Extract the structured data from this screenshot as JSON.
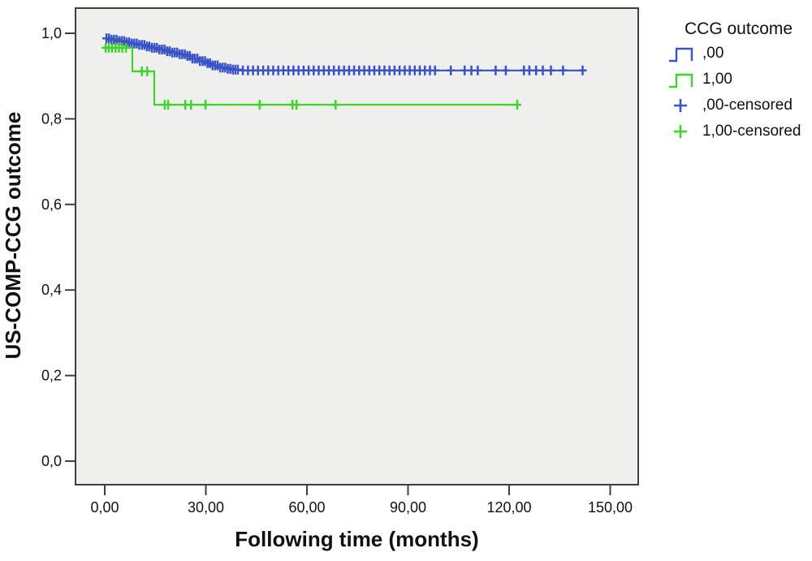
{
  "chart_data": {
    "type": "line",
    "subtype": "kaplan-meier-step-survival",
    "title": "",
    "xlabel": "Following time (months)",
    "ylabel": "US-COMP-CCG outcome",
    "grid": false,
    "plot_bg": "#eff0ee",
    "frame_color": "#3f3f3f",
    "text_color": "#111111",
    "x_axis": {
      "ticks": [
        0,
        30,
        60,
        90,
        120,
        150
      ],
      "tick_labels": [
        "0,00",
        "30,00",
        "60,00",
        "90,00",
        "120,00",
        "150,00"
      ],
      "range": [
        -8.7,
        158.3
      ]
    },
    "y_axis": {
      "ticks": [
        0.0,
        0.2,
        0.4,
        0.6,
        0.8,
        1.0
      ],
      "tick_labels": [
        "0,0",
        "0,2",
        "0,4",
        "0,6",
        "0,8",
        "1,0"
      ],
      "range": [
        -0.055,
        1.06
      ]
    },
    "series": [
      {
        "name": ",00",
        "color": "#3a52c8",
        "steps": [
          [
            0,
            0.988
          ],
          [
            2,
            0.985
          ],
          [
            4,
            0.982
          ],
          [
            6,
            0.979
          ],
          [
            8,
            0.976
          ],
          [
            10,
            0.973
          ],
          [
            12,
            0.969
          ],
          [
            14,
            0.966
          ],
          [
            16,
            0.962
          ],
          [
            18,
            0.958
          ],
          [
            20,
            0.955
          ],
          [
            22,
            0.951
          ],
          [
            24,
            0.947
          ],
          [
            26,
            0.941
          ],
          [
            28,
            0.935
          ],
          [
            30,
            0.93
          ],
          [
            32,
            0.925
          ],
          [
            34,
            0.92
          ],
          [
            36,
            0.917
          ],
          [
            38,
            0.915
          ],
          [
            40,
            0.913
          ]
        ],
        "end": 142,
        "censored": [
          0.5,
          1.25,
          2,
          2.75,
          3.5,
          4.25,
          5,
          5.75,
          6.5,
          7.25,
          8,
          8.75,
          9.5,
          10.25,
          11,
          11.75,
          12.5,
          13.25,
          14,
          14.75,
          15.5,
          16.25,
          17,
          17.75,
          18.5,
          19.25,
          20,
          20.75,
          21.5,
          22.25,
          23,
          23.75,
          24.5,
          25.25,
          26,
          26.75,
          27.5,
          28.25,
          29,
          29.75,
          30.5,
          31.25,
          32,
          32.75,
          33.5,
          34.25,
          35,
          35.75,
          36.5,
          37.25,
          38,
          38.75,
          39.5,
          41,
          42.5,
          44,
          45.5,
          47,
          48.5,
          50,
          51.5,
          53,
          54.5,
          56,
          57.5,
          59,
          60.5,
          62,
          63.5,
          65,
          66.5,
          68,
          69.5,
          71,
          72.5,
          74,
          75.5,
          77,
          78.5,
          80,
          81.5,
          83,
          84.5,
          86,
          87.5,
          89,
          90.5,
          92,
          93.5,
          95,
          96.5,
          98,
          102.7,
          106.8,
          108.8,
          110.7,
          116,
          119,
          124.4,
          126,
          128,
          130,
          132.4,
          136,
          141.8
        ]
      },
      {
        "name": "1,00",
        "color": "#3ed42b",
        "steps": [
          [
            0,
            0.966
          ],
          [
            8.2,
            0.911
          ],
          [
            14.7,
            0.833
          ]
        ],
        "end": 122.4,
        "censored": [
          0.3,
          1.2,
          2.2,
          3.2,
          4.2,
          5.2,
          6.3,
          11,
          12.6,
          17.8,
          18.8,
          23.9,
          25.6,
          29.9,
          46,
          55.7,
          56.9,
          68.5,
          122.4
        ]
      }
    ],
    "legend": {
      "title": "CCG outcome",
      "position": "right",
      "entries": [
        {
          "label": ",00",
          "type": "step",
          "series": 0
        },
        {
          "label": "1,00",
          "type": "step",
          "series": 1
        },
        {
          "label": ",00-censored",
          "type": "plus",
          "series": 0
        },
        {
          "label": "1,00-censored",
          "type": "plus",
          "series": 1
        }
      ]
    }
  }
}
